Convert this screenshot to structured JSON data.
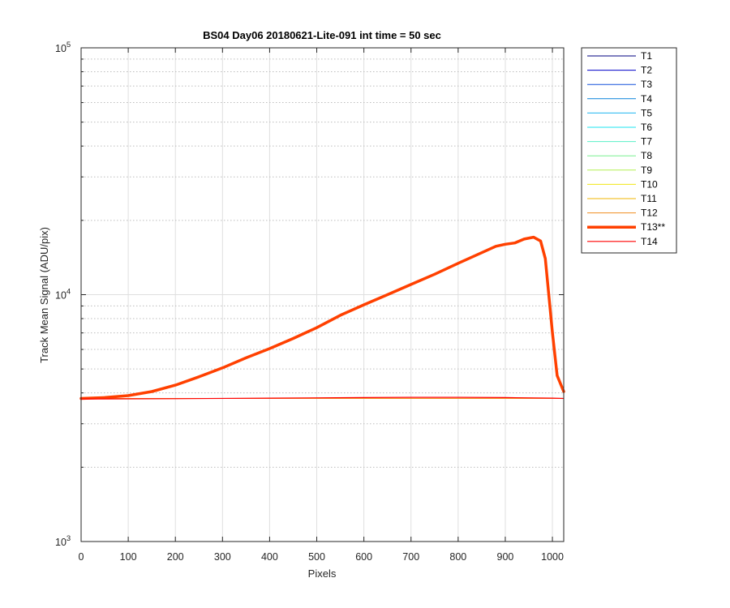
{
  "chart_data": {
    "type": "line",
    "title": "BS04 Day06 20180621-Lite-091 int time = 50 sec",
    "xlabel": "Pixels",
    "ylabel": "Track Mean Signal (ADU/pix)",
    "xlim": [
      0,
      1024
    ],
    "ylim": [
      1000,
      100000
    ],
    "yscale": "log",
    "grid": true,
    "x_ticks": [
      "0",
      "100",
      "200",
      "300",
      "400",
      "500",
      "600",
      "700",
      "800",
      "900",
      "1000"
    ],
    "x_tick_values": [
      0,
      100,
      200,
      300,
      400,
      500,
      600,
      700,
      800,
      900,
      1000
    ],
    "y_ticks": [
      {
        "value": 1000,
        "base": "10",
        "exp": "3"
      },
      {
        "value": 10000,
        "base": "10",
        "exp": "4"
      },
      {
        "value": 100000,
        "base": "10",
        "exp": "5"
      }
    ],
    "legend_position": "outside-right",
    "series": [
      {
        "name": "T1",
        "color": "#000080",
        "width": 1,
        "x": [
          0,
          1024
        ],
        "y": [
          3800,
          3800
        ]
      },
      {
        "name": "T2",
        "color": "#0000c8",
        "width": 1,
        "x": [
          0,
          1024
        ],
        "y": [
          3800,
          3800
        ]
      },
      {
        "name": "T3",
        "color": "#1450dc",
        "width": 1,
        "x": [
          0,
          1024
        ],
        "y": [
          3800,
          3800
        ]
      },
      {
        "name": "T4",
        "color": "#0a82dc",
        "width": 1,
        "x": [
          0,
          1024
        ],
        "y": [
          3800,
          3800
        ]
      },
      {
        "name": "T5",
        "color": "#1eb4f0",
        "width": 1,
        "x": [
          0,
          1024
        ],
        "y": [
          3800,
          3800
        ]
      },
      {
        "name": "T6",
        "color": "#1ee6f0",
        "width": 1,
        "x": [
          0,
          1024
        ],
        "y": [
          3800,
          3800
        ]
      },
      {
        "name": "T7",
        "color": "#5af0c8",
        "width": 1,
        "x": [
          0,
          1024
        ],
        "y": [
          3800,
          3800
        ]
      },
      {
        "name": "T8",
        "color": "#78f090",
        "width": 1,
        "x": [
          0,
          1024
        ],
        "y": [
          3800,
          3800
        ]
      },
      {
        "name": "T9",
        "color": "#b4f050",
        "width": 1,
        "x": [
          0,
          1024
        ],
        "y": [
          3800,
          3800
        ]
      },
      {
        "name": "T10",
        "color": "#f0e614",
        "width": 1,
        "x": [
          0,
          1024
        ],
        "y": [
          3800,
          3800
        ]
      },
      {
        "name": "T11",
        "color": "#f0b400",
        "width": 1,
        "x": [
          0,
          1024
        ],
        "y": [
          3800,
          3800
        ]
      },
      {
        "name": "T12",
        "color": "#f08c1e",
        "width": 1,
        "x": [
          0,
          1024
        ],
        "y": [
          3800,
          3800
        ]
      },
      {
        "name": "T13**",
        "color": "#ff4000",
        "width": 3.5,
        "x": [
          0,
          50,
          100,
          150,
          200,
          250,
          300,
          350,
          400,
          450,
          500,
          550,
          600,
          650,
          700,
          750,
          800,
          850,
          880,
          900,
          920,
          940,
          960,
          975,
          985,
          1000,
          1010,
          1024
        ],
        "y": [
          3800,
          3830,
          3900,
          4050,
          4300,
          4650,
          5050,
          5550,
          6050,
          6650,
          7350,
          8250,
          9100,
          10000,
          11000,
          12100,
          13400,
          14800,
          15700,
          16000,
          16200,
          16800,
          17100,
          16500,
          14000,
          7000,
          4700,
          4050
        ]
      },
      {
        "name": "T14",
        "color": "#ff0000",
        "width": 1.2,
        "x": [
          0,
          200,
          400,
          600,
          700,
          800,
          900,
          1000,
          1024
        ],
        "y": [
          3780,
          3790,
          3810,
          3830,
          3840,
          3840,
          3830,
          3810,
          3800
        ]
      }
    ]
  }
}
